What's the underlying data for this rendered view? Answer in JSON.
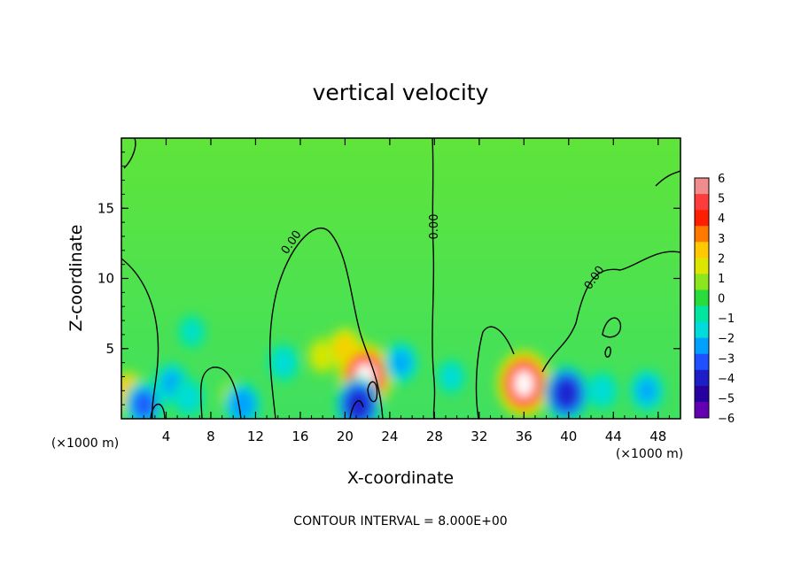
{
  "chart_data": {
    "type": "heatmap",
    "title": "vertical velocity",
    "xlabel": "X-coordinate",
    "ylabel": "Z-coordinate",
    "x_unit": "(×1000 m)",
    "y_unit": "(×1000 m)",
    "xlim": [
      0,
      50
    ],
    "ylim": [
      0,
      20
    ],
    "x_ticks": [
      4,
      8,
      12,
      16,
      20,
      24,
      28,
      32,
      36,
      40,
      44,
      48
    ],
    "y_ticks": [
      5,
      10,
      15
    ],
    "colorbar": {
      "ticks": [
        "6",
        "5",
        "4",
        "3",
        "2",
        "1",
        "0",
        "−1",
        "−2",
        "−3",
        "−4",
        "−5",
        "−6"
      ],
      "colors": [
        "#f08c8c",
        "#ff3c3c",
        "#ff1e00",
        "#ff7800",
        "#ffc800",
        "#dce600",
        "#8ce61e",
        "#28dc3c",
        "#00e6a0",
        "#00dcdc",
        "#00a0ff",
        "#1e50ff",
        "#1e1ec8",
        "#2800a0",
        "#6400b4"
      ]
    },
    "contour_labels": [
      "0.00",
      "0.00",
      "0.00"
    ],
    "footer": "CONTOUR INTERVAL = 8.000E+00",
    "features": [
      {
        "x": 0.6,
        "z": 1.8,
        "w": 3.5
      },
      {
        "x": 2.0,
        "z": 1.0,
        "w": -4.0
      },
      {
        "x": 4.5,
        "z": 2.5,
        "w": -3.0
      },
      {
        "x": 6.0,
        "z": 1.5,
        "w": -2.5
      },
      {
        "x": 6.3,
        "z": 6.2,
        "w": -1.8
      },
      {
        "x": 10.0,
        "z": 1.5,
        "w": 2.0
      },
      {
        "x": 10.8,
        "z": 1.0,
        "w": -3.5
      },
      {
        "x": 14.5,
        "z": 4.0,
        "w": -2.5
      },
      {
        "x": 18.0,
        "z": 4.5,
        "w": 2.5
      },
      {
        "x": 20.0,
        "z": 5.0,
        "w": 3.2
      },
      {
        "x": 21.8,
        "z": 3.0,
        "w": 6.5
      },
      {
        "x": 21.2,
        "z": 1.0,
        "w": -5.0
      },
      {
        "x": 25.0,
        "z": 4.0,
        "w": -3.0
      },
      {
        "x": 29.5,
        "z": 3.0,
        "w": -2.0
      },
      {
        "x": 36.0,
        "z": 2.5,
        "w": 6.5
      },
      {
        "x": 39.8,
        "z": 1.8,
        "w": -5.0
      },
      {
        "x": 43.0,
        "z": 2.0,
        "w": -2.5
      },
      {
        "x": 47.0,
        "z": 2.0,
        "w": -3.0
      }
    ]
  }
}
